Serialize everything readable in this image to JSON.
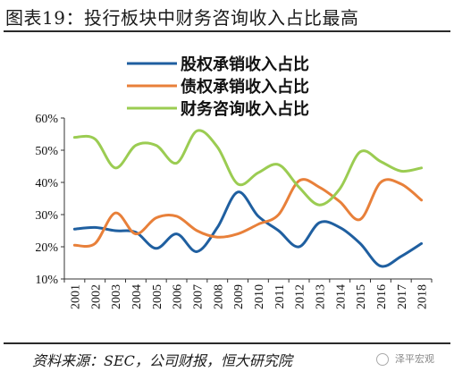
{
  "title": "图表19：投行板块中财务咨询收入占比最高",
  "source": "资料来源：SEC，公司财报，恒大研究院",
  "watermark": "泽平宏观",
  "chart_data": {
    "type": "line",
    "x": [
      "2001",
      "2002",
      "2003",
      "2004",
      "2005",
      "2006",
      "2007",
      "2008",
      "2009",
      "2010",
      "2011",
      "2012",
      "2013",
      "2014",
      "2015",
      "2016",
      "2017",
      "2018"
    ],
    "ylim": [
      10,
      60
    ],
    "yticks": [
      10,
      20,
      30,
      40,
      50,
      60
    ],
    "ytick_labels": [
      "10%",
      "20%",
      "30%",
      "40%",
      "50%",
      "60%"
    ],
    "grid": false,
    "legend_position": "top",
    "series": [
      {
        "name": "股权承销收入占比",
        "color": "#1f5fa0",
        "values": [
          25.5,
          26,
          25,
          24.5,
          19.5,
          24,
          18.5,
          26,
          37,
          29.5,
          25,
          20,
          27.5,
          26,
          21,
          14,
          17,
          21
        ]
      },
      {
        "name": "债权承销收入占比",
        "color": "#e8803a",
        "values": [
          20.5,
          21,
          30.5,
          24,
          29,
          29.5,
          25,
          23,
          24,
          27,
          30,
          40.5,
          38.5,
          34,
          28.5,
          40,
          39.5,
          34.5
        ]
      },
      {
        "name": "财务咨询收入占比",
        "color": "#9bcc52",
        "values": [
          54,
          53.5,
          44.5,
          51.5,
          51.5,
          46,
          56,
          51,
          39.5,
          43,
          45.5,
          38.5,
          33,
          38,
          49.5,
          46.5,
          43.5,
          44.5
        ]
      }
    ]
  }
}
